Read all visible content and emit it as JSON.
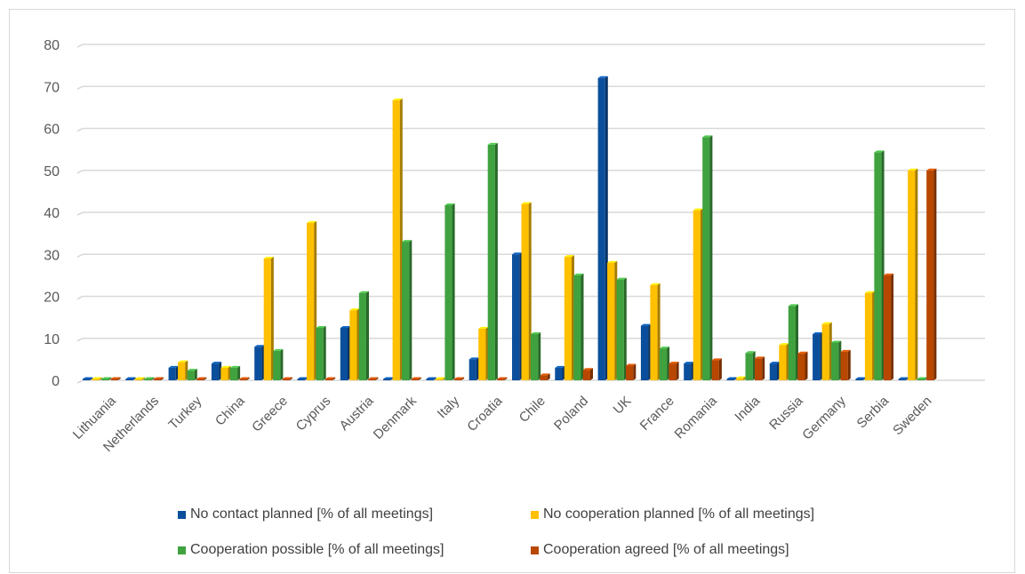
{
  "chart_data": {
    "type": "bar",
    "style": "3d-clustered-column",
    "title": "",
    "xlabel": "",
    "ylabel": "",
    "ylim": [
      0,
      80
    ],
    "yticks": [
      0,
      10,
      20,
      30,
      40,
      50,
      60,
      70,
      80
    ],
    "grid": true,
    "legend_position": "bottom",
    "categories": [
      "Lithuania",
      "Netherlands",
      "Turkey",
      "China",
      "Greece",
      "Cyprus",
      "Austria",
      "Denmark",
      "Italy",
      "Croatia",
      "Chile",
      "Poland",
      "UK",
      "France",
      "Romania",
      "India",
      "Russia",
      "Germany",
      "Serbia",
      "Sweden"
    ],
    "series": [
      {
        "name": "No contact planned [% of all meetings]",
        "color": "#0B4F9C",
        "values": [
          0,
          0,
          3,
          4,
          8,
          0,
          12.5,
          0,
          0,
          5,
          30,
          3,
          72,
          13,
          4,
          0,
          4,
          11,
          0,
          0
        ]
      },
      {
        "name": "No cooperation planned [% of all meetings]",
        "color": "#FFC000",
        "values": [
          0,
          0,
          4.3,
          3,
          29,
          37.5,
          16.7,
          66.7,
          0,
          12.3,
          42,
          29.4,
          28,
          22.7,
          40.5,
          0.5,
          8.4,
          13.4,
          20.8,
          50
        ]
      },
      {
        "name": "Cooperation possible [% of all meetings]",
        "color": "#3FA23F",
        "values": [
          0,
          0,
          2.3,
          3,
          7,
          12.5,
          20.8,
          33,
          41.7,
          56.1,
          11,
          25,
          24,
          7.6,
          57.9,
          6.5,
          17.7,
          9,
          54.3,
          0
        ]
      },
      {
        "name": "Cooperation agreed [% of all meetings]",
        "color": "#B84700",
        "values": [
          0,
          0,
          0,
          0,
          0,
          0,
          0,
          0,
          0,
          0,
          1.2,
          2.5,
          3.5,
          4,
          4.8,
          5.2,
          6.4,
          6.8,
          25,
          50
        ]
      }
    ]
  }
}
